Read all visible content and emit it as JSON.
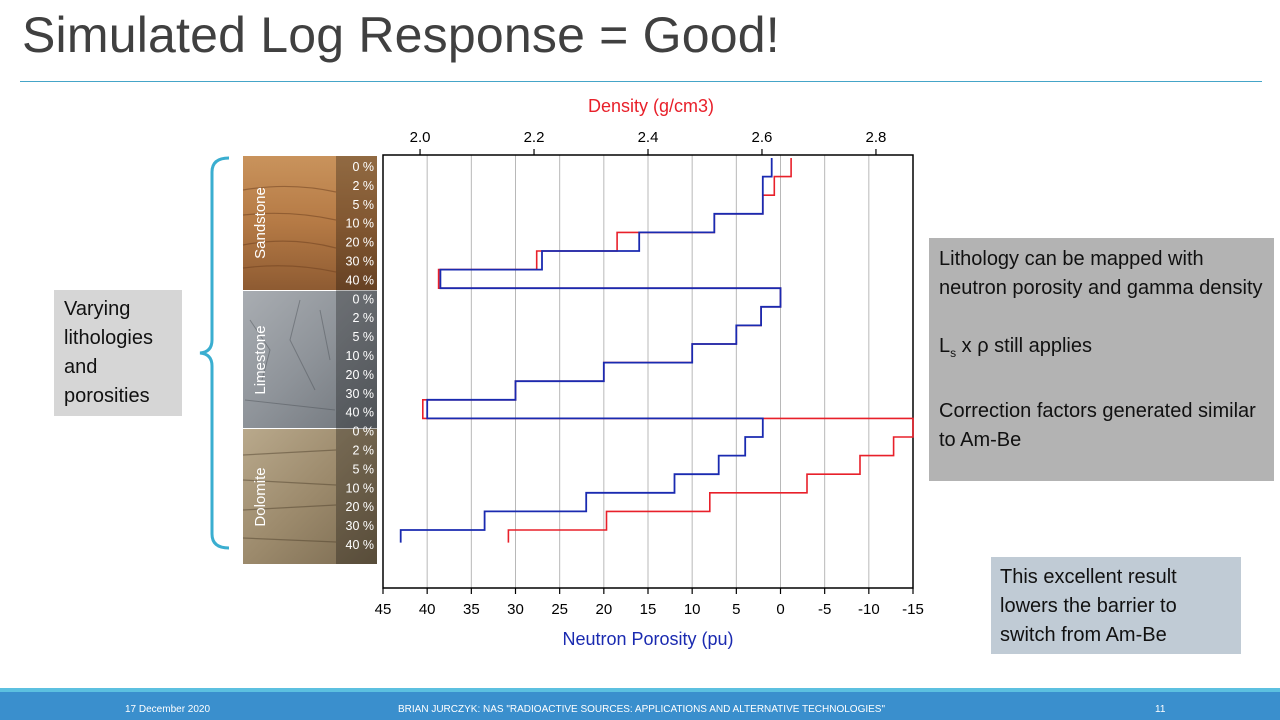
{
  "slide": {
    "title": "Simulated Log Response = Good!",
    "left_box": "Varying lithologies and porosities",
    "right_box": {
      "line1": "Lithology can be mapped with neutron porosity and gamma density",
      "line2_main": "L",
      "line2_sub": "s",
      "line2_rest": " x ρ still applies",
      "line3": "Correction factors generated similar to Am-Be"
    },
    "bottom_box": "This excellent result lowers the barrier to switch from Am-Be",
    "footer": {
      "date": "17 December 2020",
      "presenter": "BRIAN JURCZYK:   NAS \"RADIOACTIVE SOURCES: APPLICATIONS AND ALTERNATIVE TECHNOLOGIES\"",
      "page": "11"
    },
    "colors": {
      "accent": "#45a5c8",
      "footer": "#3a8fcd",
      "density": "#e8202a",
      "neutron": "#1a2ab0"
    }
  },
  "chart_data": {
    "type": "line",
    "top_axis": {
      "label": "Density (g/cm3)",
      "range": [
        1.935,
        2.865
      ],
      "ticks": [
        "2.0",
        "2.2",
        "2.4",
        "2.6",
        "2.8"
      ],
      "tick_values": [
        2.0,
        2.2,
        2.4,
        2.6,
        2.8
      ]
    },
    "bottom_axis": {
      "label": "Neutron Porosity (pu)",
      "range": [
        45,
        -15
      ],
      "ticks": [
        "45",
        "40",
        "35",
        "30",
        "25",
        "20",
        "15",
        "10",
        "5",
        "0",
        "-5",
        "-10",
        "-15"
      ],
      "tick_values": [
        45,
        40,
        35,
        30,
        25,
        20,
        15,
        10,
        5,
        0,
        -5,
        -10,
        -15
      ]
    },
    "lithologies": [
      "Sandstone",
      "Limestone",
      "Dolomite"
    ],
    "porosity_labels": [
      "0 %",
      "2 %",
      "5 %",
      "10 %",
      "20 %",
      "30 %",
      "40 %"
    ],
    "grid": true,
    "series": [
      {
        "name": "",
        "color": "#e8202a",
        "axis": "neutron",
        "values": [
          {
            "lith": "Sandstone",
            "porosity": 0,
            "neutron": -1.2
          },
          {
            "lith": "Sandstone",
            "porosity": 2,
            "neutron": 0.7
          },
          {
            "lith": "Sandstone",
            "porosity": 5,
            "neutron": 2.0
          },
          {
            "lith": "Sandstone",
            "porosity": 10,
            "neutron": 7.5
          },
          {
            "lith": "Sandstone",
            "porosity": 20,
            "neutron": 18.5
          },
          {
            "lith": "Sandstone",
            "porosity": 30,
            "neutron": 27.6
          },
          {
            "lith": "Sandstone",
            "porosity": 40,
            "neutron": 38.7
          },
          {
            "lith": "Limestone",
            "porosity": 0,
            "neutron": 0.0
          },
          {
            "lith": "Limestone",
            "porosity": 2,
            "neutron": 2.2
          },
          {
            "lith": "Limestone",
            "porosity": 5,
            "neutron": 5.0
          },
          {
            "lith": "Limestone",
            "porosity": 10,
            "neutron": 10.0
          },
          {
            "lith": "Limestone",
            "porosity": 20,
            "neutron": 20.0
          },
          {
            "lith": "Limestone",
            "porosity": 30,
            "neutron": 30.0
          },
          {
            "lith": "Limestone",
            "porosity": 40,
            "neutron": 40.5
          },
          {
            "lith": "Dolomite",
            "porosity": 0,
            "neutron": -15.0
          },
          {
            "lith": "Dolomite",
            "porosity": 2,
            "neutron": -12.8
          },
          {
            "lith": "Dolomite",
            "porosity": 5,
            "neutron": -9.0
          },
          {
            "lith": "Dolomite",
            "porosity": 10,
            "neutron": -3.0
          },
          {
            "lith": "Dolomite",
            "porosity": 20,
            "neutron": 8.0
          },
          {
            "lith": "Dolomite",
            "porosity": 30,
            "neutron": 19.7
          },
          {
            "lith": "Dolomite",
            "porosity": 40,
            "neutron": 30.8
          }
        ]
      },
      {
        "name": "",
        "color": "#1a2ab0",
        "axis": "neutron",
        "values": [
          {
            "lith": "Sandstone",
            "porosity": 0,
            "neutron": 1.0
          },
          {
            "lith": "Sandstone",
            "porosity": 2,
            "neutron": 2.0
          },
          {
            "lith": "Sandstone",
            "porosity": 5,
            "neutron": 2.0
          },
          {
            "lith": "Sandstone",
            "porosity": 10,
            "neutron": 7.5
          },
          {
            "lith": "Sandstone",
            "porosity": 20,
            "neutron": 16.0
          },
          {
            "lith": "Sandstone",
            "porosity": 30,
            "neutron": 27.0
          },
          {
            "lith": "Sandstone",
            "porosity": 40,
            "neutron": 38.5
          },
          {
            "lith": "Limestone",
            "porosity": 0,
            "neutron": 0.0
          },
          {
            "lith": "Limestone",
            "porosity": 2,
            "neutron": 2.2
          },
          {
            "lith": "Limestone",
            "porosity": 5,
            "neutron": 5.0
          },
          {
            "lith": "Limestone",
            "porosity": 10,
            "neutron": 10.0
          },
          {
            "lith": "Limestone",
            "porosity": 20,
            "neutron": 20.0
          },
          {
            "lith": "Limestone",
            "porosity": 30,
            "neutron": 30.0
          },
          {
            "lith": "Limestone",
            "porosity": 40,
            "neutron": 40.0
          },
          {
            "lith": "Dolomite",
            "porosity": 0,
            "neutron": 2.0
          },
          {
            "lith": "Dolomite",
            "porosity": 2,
            "neutron": 4.0
          },
          {
            "lith": "Dolomite",
            "porosity": 5,
            "neutron": 7.0
          },
          {
            "lith": "Dolomite",
            "porosity": 10,
            "neutron": 12.0
          },
          {
            "lith": "Dolomite",
            "porosity": 20,
            "neutron": 22.0
          },
          {
            "lith": "Dolomite",
            "porosity": 30,
            "neutron": 33.5
          },
          {
            "lith": "Dolomite",
            "porosity": 40,
            "neutron": 43.0
          }
        ]
      }
    ]
  }
}
